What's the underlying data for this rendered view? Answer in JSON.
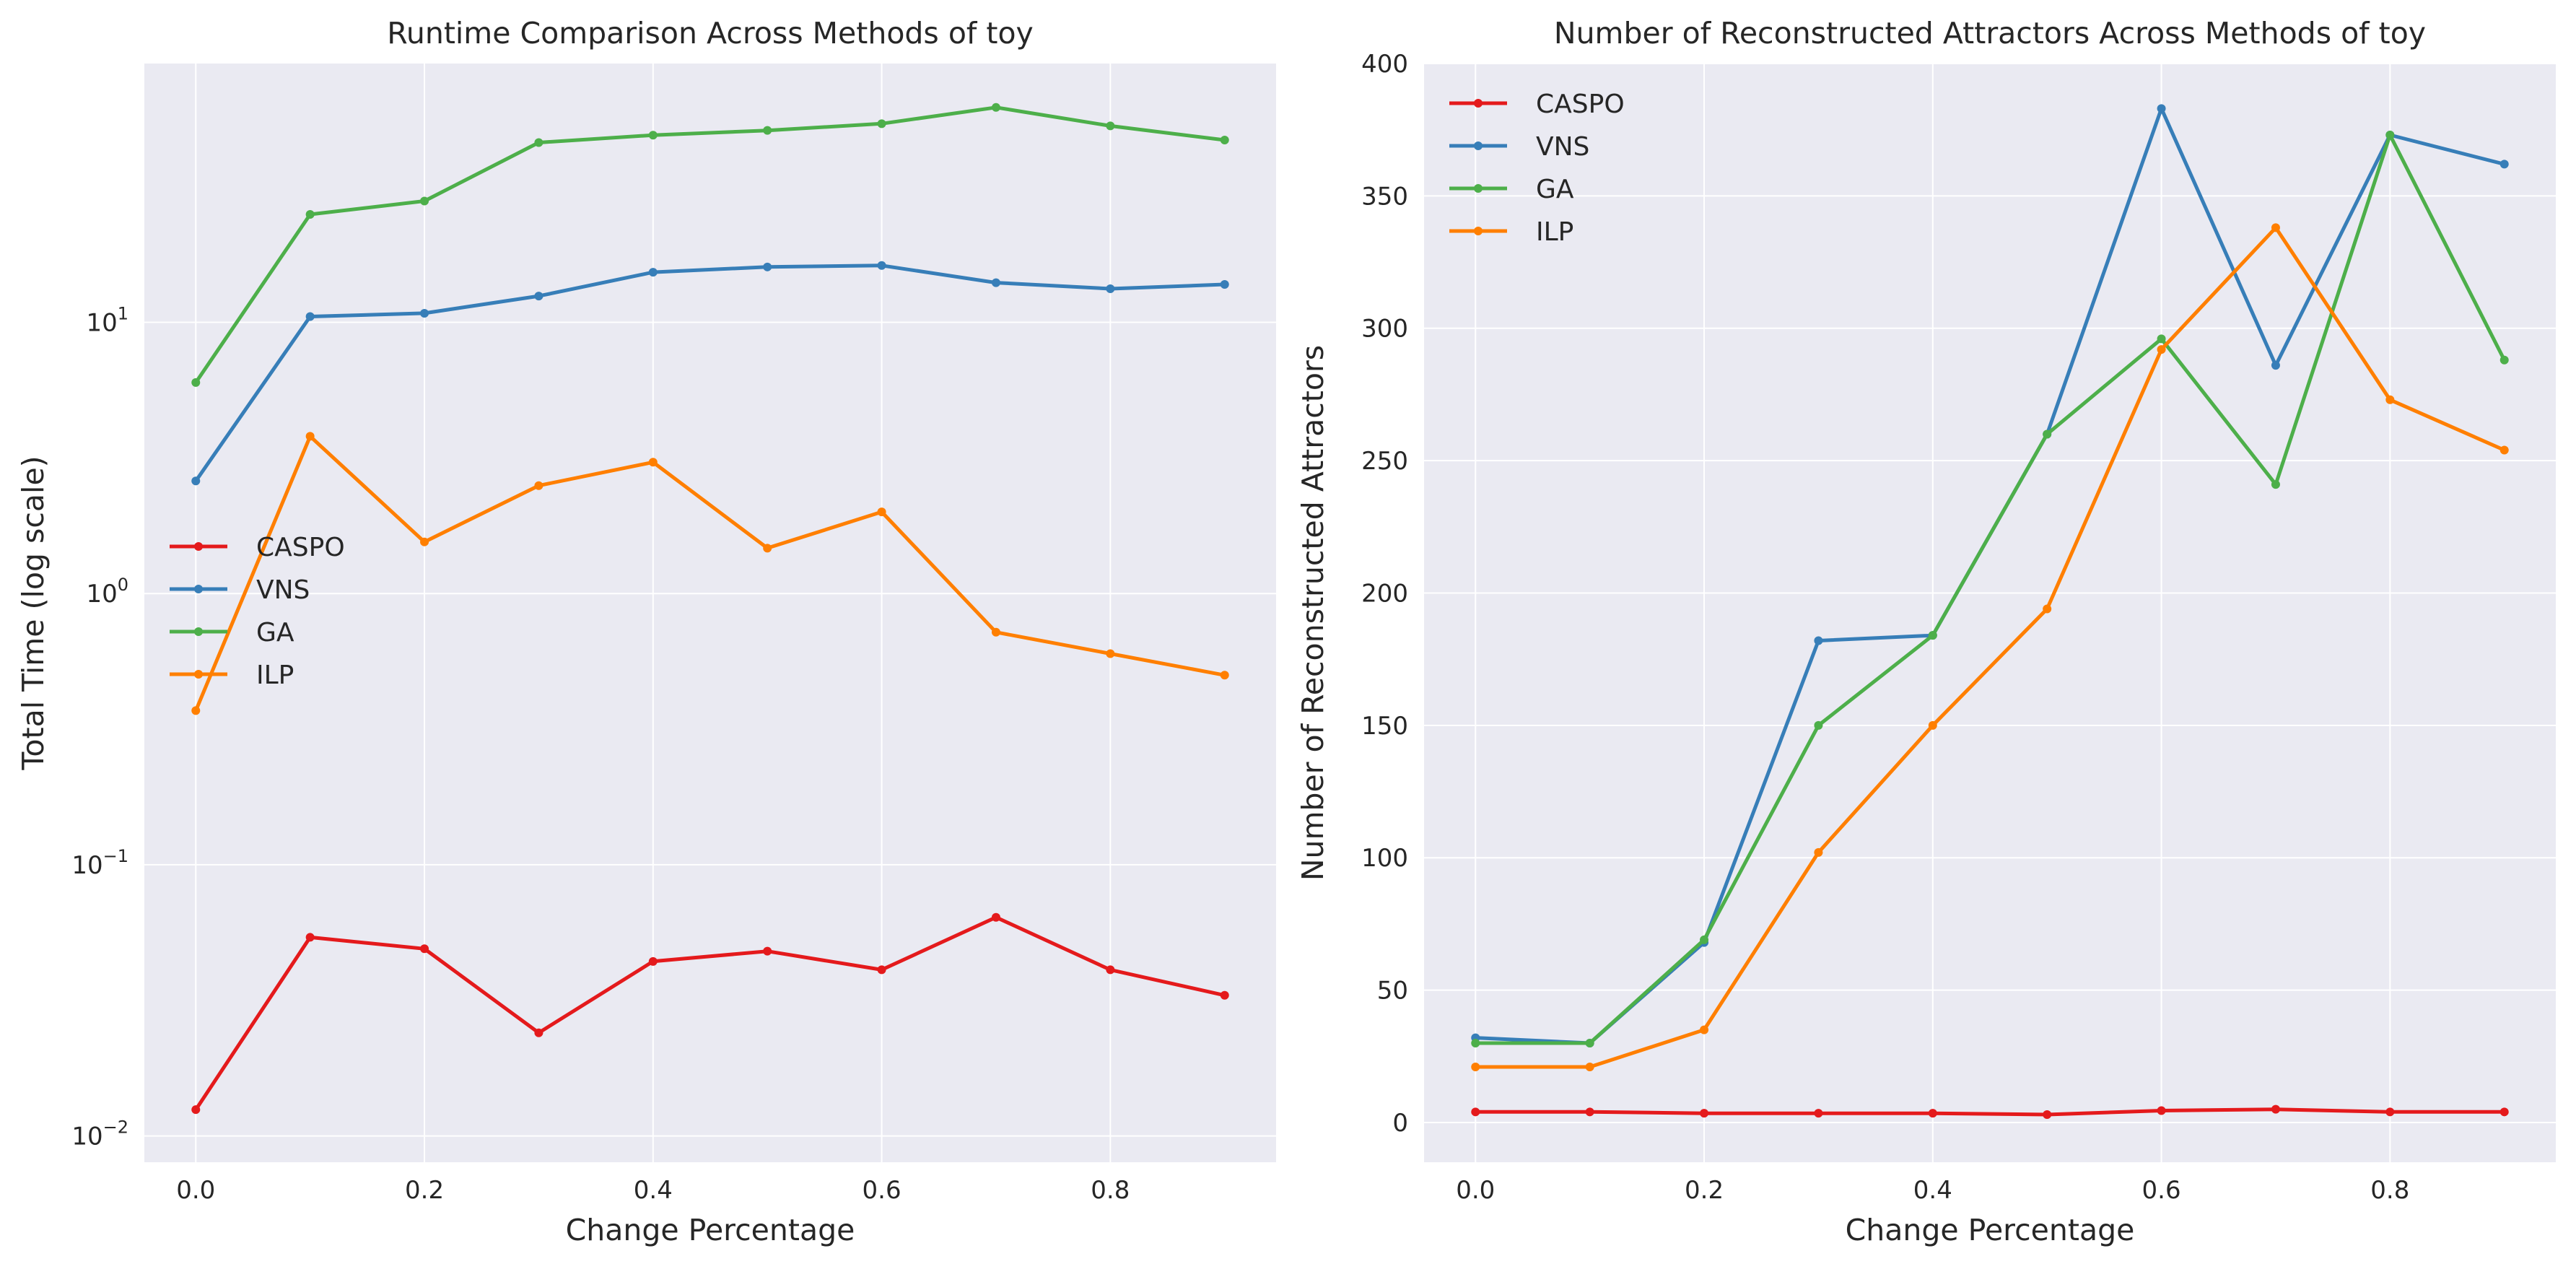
{
  "chart_data": [
    {
      "type": "line",
      "title": "Runtime Comparison Across Methods of toy",
      "xlabel": "Change Percentage",
      "ylabel": "Total Time (log scale)",
      "yscale": "log",
      "ylim": [
        0.008,
        90
      ],
      "xlim": [
        -0.045,
        0.945
      ],
      "grid": true,
      "legend_position": "center-left",
      "x_ticks": [
        0.0,
        0.2,
        0.4,
        0.6,
        0.8
      ],
      "x_tick_labels": [
        "0.0",
        "0.2",
        "0.4",
        "0.6",
        "0.8"
      ],
      "y_ticks": [
        0.01,
        0.1,
        1,
        10
      ],
      "y_tick_labels": [
        {
          "base": "10",
          "exp": "−2"
        },
        {
          "base": "10",
          "exp": "−1"
        },
        {
          "base": "10",
          "exp": "0"
        },
        {
          "base": "10",
          "exp": "1"
        }
      ],
      "x": [
        0.0,
        0.1,
        0.2,
        0.3,
        0.4,
        0.5,
        0.6,
        0.7,
        0.8,
        0.9
      ],
      "series": [
        {
          "name": "CASPO",
          "color": "#e41a1c",
          "values": [
            0.0125,
            0.054,
            0.049,
            0.024,
            0.044,
            0.048,
            0.041,
            0.064,
            0.041,
            0.033
          ]
        },
        {
          "name": "VNS",
          "color": "#377eb8",
          "values": [
            2.6,
            10.5,
            10.8,
            12.5,
            15.3,
            16.0,
            16.2,
            14.0,
            13.3,
            13.8
          ]
        },
        {
          "name": "GA",
          "color": "#4daf4a",
          "values": [
            6.0,
            25.0,
            28.0,
            46.0,
            49.0,
            51.0,
            54.0,
            62.0,
            53.0,
            47.0
          ]
        },
        {
          "name": "ILP",
          "color": "#ff7f00",
          "values": [
            0.37,
            3.8,
            1.55,
            2.5,
            3.05,
            1.47,
            2.0,
            0.72,
            0.6,
            0.5
          ]
        }
      ]
    },
    {
      "type": "line",
      "title": "Number of Reconstructed Attractors Across Methods of toy",
      "xlabel": "Change Percentage",
      "ylabel": "Number of Reconstructed Attractors",
      "ylim": [
        -15,
        400
      ],
      "xlim": [
        -0.045,
        0.945
      ],
      "grid": true,
      "legend_position": "upper-left",
      "x_ticks": [
        0.0,
        0.2,
        0.4,
        0.6,
        0.8
      ],
      "x_tick_labels": [
        "0.0",
        "0.2",
        "0.4",
        "0.6",
        "0.8"
      ],
      "y_ticks": [
        0,
        50,
        100,
        150,
        200,
        250,
        300,
        350,
        400
      ],
      "y_tick_labels": [
        "0",
        "50",
        "100",
        "150",
        "200",
        "250",
        "300",
        "350",
        "400"
      ],
      "x": [
        0.0,
        0.1,
        0.2,
        0.3,
        0.4,
        0.5,
        0.6,
        0.7,
        0.8,
        0.9
      ],
      "series": [
        {
          "name": "CASPO",
          "color": "#e41a1c",
          "values": [
            4,
            4,
            3.5,
            3.5,
            3.5,
            3,
            4.5,
            5,
            4,
            4
          ]
        },
        {
          "name": "VNS",
          "color": "#377eb8",
          "values": [
            32,
            30,
            68,
            182,
            184,
            260,
            383,
            286,
            373,
            362
          ]
        },
        {
          "name": "GA",
          "color": "#4daf4a",
          "values": [
            30,
            30,
            69,
            150,
            184,
            260,
            296,
            241,
            373,
            288
          ]
        },
        {
          "name": "ILP",
          "color": "#ff7f00",
          "values": [
            21,
            21,
            35,
            102,
            150,
            194,
            292,
            338,
            273,
            254
          ]
        }
      ]
    }
  ]
}
